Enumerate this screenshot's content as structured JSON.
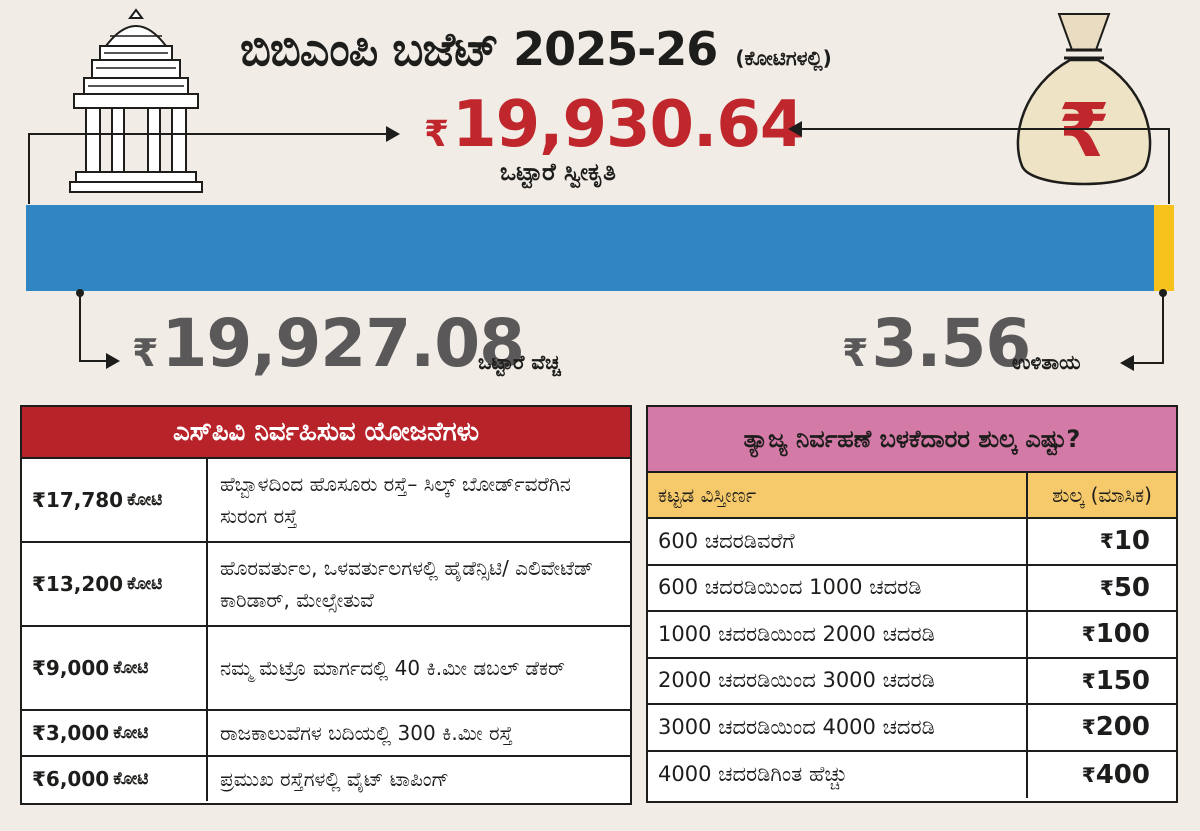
{
  "header": {
    "title": "ಬಿಬಿಎಂಪಿ ಬಜೆಟ್ 2025-26",
    "unit": "(ಕೋಟಿಗಳಲ್ಲಿ)"
  },
  "summary": {
    "currency_symbol": "₹",
    "total_amount": "19,930.64",
    "total_label": "ಒಟ್ಟಾರೆ ಸ್ವೀಕೃತಿ",
    "expenditure_amount": "19,927.08",
    "expenditure_label": "ಒಟ್ಟಾರೆ ವೆಚ್ಚ",
    "surplus_amount": "3.56",
    "surplus_label": "ಉಳಿತಾಯ",
    "expenditure_fraction": 0.9982,
    "surplus_fraction": 0.0018
  },
  "colors": {
    "total_red": "#c0272d",
    "bar_blue": "#2f86c2",
    "surplus_yellow": "#f6c21b",
    "left_header_red": "#b8232a",
    "right_header_pink": "#d47aa6",
    "column_header_yellow": "#f6c96a"
  },
  "icons": {
    "temple": "temple-icon",
    "money_bag": "money-bag-icon",
    "rupee": "rupee-icon"
  },
  "spv_projects": {
    "heading": "ಎಸ್‌ಪಿವಿ ನಿರ್ವಹಿಸುವ ಯೋಜನೆಗಳು",
    "unit": "ಕೋಟಿ",
    "rows": [
      {
        "amount": "₹17,780",
        "description": "ಹೆಬ್ಬಾಳದಿಂದ ಹೊಸೂರು ರಸ್ತೆ– ಸಿಲ್ಕ್ ಬೋರ್ಡ್‌ವರೆಗಿನ ಸುರಂಗ ರಸ್ತೆ"
      },
      {
        "amount": "₹13,200",
        "description": "ಹೊರವರ್ತುಲ, ಒಳವರ್ತುಲಗಳಲ್ಲಿ ಹೈಡೆನ್ಸಿಟಿ/ ಎಲಿವೇಟೆಡ್ ಕಾರಿಡಾರ್, ಮೇಲ್ಸೇತುವೆ"
      },
      {
        "amount": "₹9,000",
        "description": "ನಮ್ಮ ಮೆಟ್ರೊ ಮಾರ್ಗದಲ್ಲಿ 40 ಕಿ.ಮೀ ಡಬಲ್ ಡೆಕರ್"
      },
      {
        "amount": "₹3,000",
        "description": "ರಾಜಕಾಲುವೆಗಳ ಬದಿಯಲ್ಲಿ 300 ಕಿ.ಮೀ ರಸ್ತೆ"
      },
      {
        "amount": "₹6,000",
        "description": "ಪ್ರಮುಖ ರಸ್ತೆಗಳಲ್ಲಿ ವೈಟ್ ಟಾಪಿಂಗ್"
      }
    ]
  },
  "waste_fee": {
    "heading": "ತ್ಯಾಜ್ಯ ನಿರ್ವಹಣೆ ಬಳಕೆದಾರರ ಶುಲ್ಕ ಎಷ್ಟು?",
    "col_area": "ಕಟ್ಟಡ ವಿಸ್ತೀರ್ಣ",
    "col_fee": "ಶುಲ್ಕ (ಮಾಸಿಕ)",
    "rows": [
      {
        "area": "600 ಚದರಡಿವರೆಗೆ",
        "fee": "10"
      },
      {
        "area": "600 ಚದರಡಿಯಿಂದ 1000 ಚದರಡಿ",
        "fee": "50"
      },
      {
        "area": "1000 ಚದರಡಿಯಿಂದ 2000 ಚದರಡಿ",
        "fee": "100"
      },
      {
        "area": "2000 ಚದರಡಿಯಿಂದ 3000 ಚದರಡಿ",
        "fee": "150"
      },
      {
        "area": "3000 ಚದರಡಿಯಿಂದ 4000 ಚದರಡಿ",
        "fee": "200"
      },
      {
        "area": "4000 ಚದರಡಿಗಿಂತ ಹೆಚ್ಚು",
        "fee": "400"
      }
    ]
  }
}
